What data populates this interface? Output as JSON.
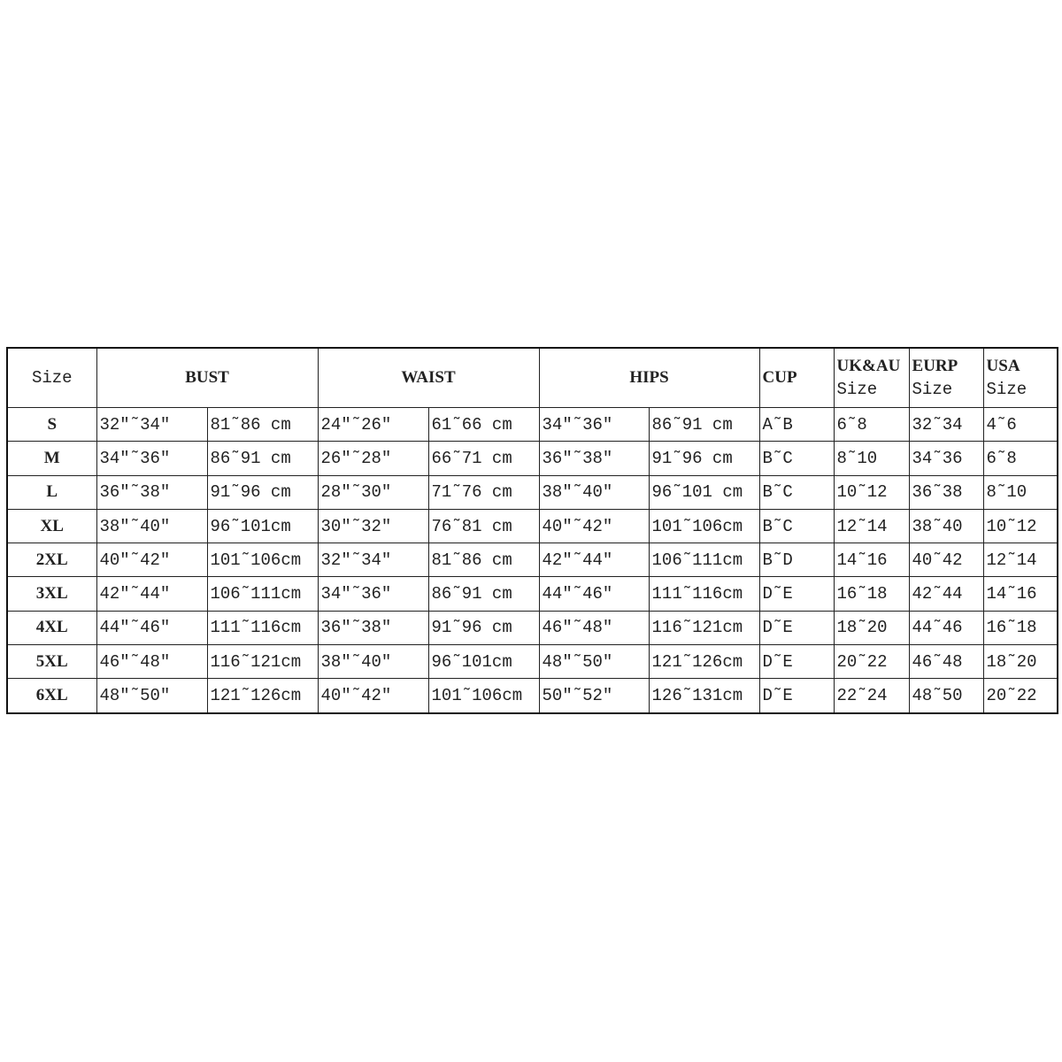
{
  "headers": {
    "size": "Size",
    "bust": "BUST",
    "waist": "WAIST",
    "hips": "HIPS",
    "cup": "CUP",
    "ukau": [
      "UK&AU",
      "Size"
    ],
    "eurp": [
      "EURP",
      "Size"
    ],
    "usa": [
      "USA",
      "Size"
    ]
  },
  "rows": [
    [
      "S",
      "32″˜34″",
      "81˜86 cm",
      "24″˜26″",
      "61˜66 cm",
      "34″˜36″",
      "86˜91 cm",
      "A˜B",
      "6˜8",
      "32˜34",
      "4˜6"
    ],
    [
      "M",
      "34″˜36″",
      "86˜91 cm",
      "26″˜28″",
      "66˜71 cm",
      "36″˜38″",
      "91˜96 cm",
      "B˜C",
      "8˜10",
      "34˜36",
      "6˜8"
    ],
    [
      "L",
      "36″˜38″",
      "91˜96 cm",
      "28″˜30″",
      "71˜76 cm",
      "38″˜40″",
      "96˜101 cm",
      "B˜C",
      "10˜12",
      "36˜38",
      "8˜10"
    ],
    [
      "XL",
      "38″˜40″",
      "96˜101cm",
      "30″˜32″",
      "76˜81 cm",
      "40″˜42″",
      "101˜106cm",
      "B˜C",
      "12˜14",
      "38˜40",
      "10˜12"
    ],
    [
      "2XL",
      "40″˜42″",
      "101˜106cm",
      "32″˜34″",
      "81˜86 cm",
      "42″˜44″",
      "106˜111cm",
      "B˜D",
      "14˜16",
      "40˜42",
      "12˜14"
    ],
    [
      "3XL",
      "42″˜44″",
      "106˜111cm",
      "34″˜36″",
      "86˜91 cm",
      "44″˜46″",
      "111˜116cm",
      "D˜E",
      "16˜18",
      "42˜44",
      "14˜16"
    ],
    [
      "4XL",
      "44″˜46″",
      "111˜116cm",
      "36″˜38″",
      "91˜96 cm",
      "46″˜48″",
      "116˜121cm",
      "D˜E",
      "18˜20",
      "44˜46",
      "16˜18"
    ],
    [
      "5XL",
      "46″˜48″",
      "116˜121cm",
      "38″˜40″",
      "96˜101cm",
      "48″˜50″",
      "121˜126cm",
      "D˜E",
      "20˜22",
      "46˜48",
      "18˜20"
    ],
    [
      "6XL",
      "48″˜50″",
      "121˜126cm",
      "40″˜42″",
      "101˜106cm",
      "50″˜52″",
      "126˜131cm",
      "D˜E",
      "22˜24",
      "48˜50",
      "20˜22"
    ]
  ]
}
